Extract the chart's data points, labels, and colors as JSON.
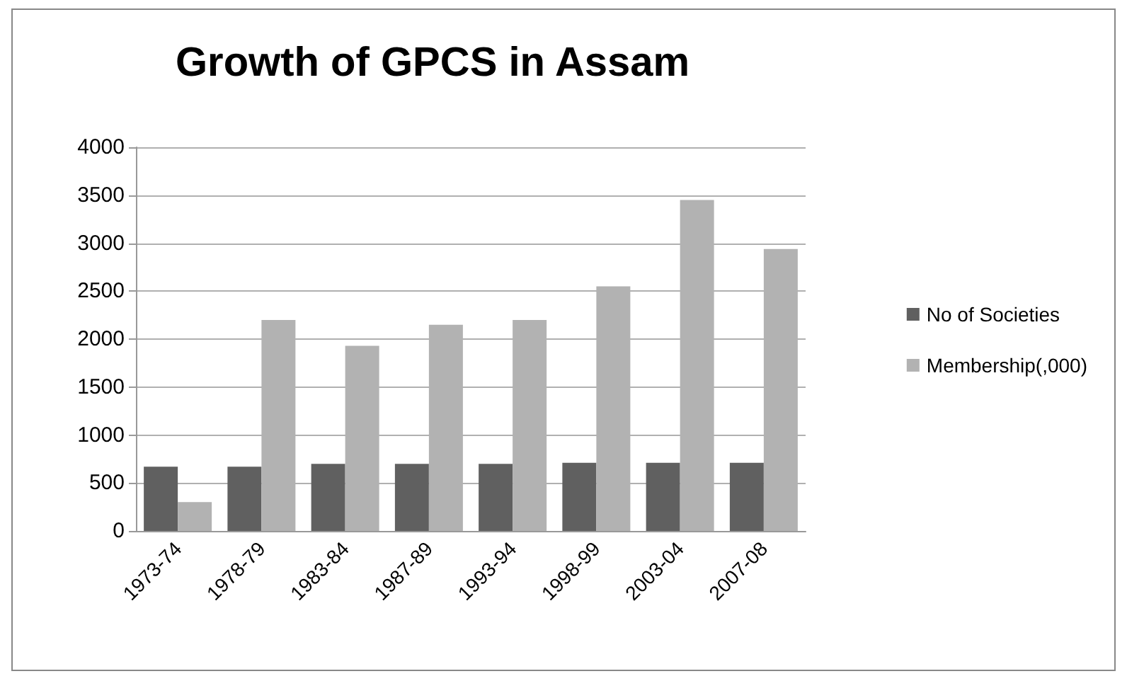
{
  "chart_data": {
    "type": "bar",
    "title": "Growth of GPCS in Assam",
    "categories": [
      "1973-74",
      "1978-79",
      "1983-84",
      "1987-89",
      "1993-94",
      "1998-99",
      "2003-04",
      "2007-08"
    ],
    "series": [
      {
        "name": "No of Societies",
        "color": "#606060",
        "values": [
          670,
          670,
          700,
          700,
          700,
          710,
          710,
          710
        ]
      },
      {
        "name": "Membership(,000)",
        "color": "#b2b2b2",
        "values": [
          300,
          2200,
          1930,
          2150,
          2200,
          2550,
          3450,
          2940
        ]
      }
    ],
    "ylim": [
      0,
      4000
    ],
    "yticks": [
      0,
      500,
      1000,
      1500,
      2000,
      2500,
      3000,
      3500,
      4000
    ],
    "grid": "y",
    "legend": "right"
  }
}
